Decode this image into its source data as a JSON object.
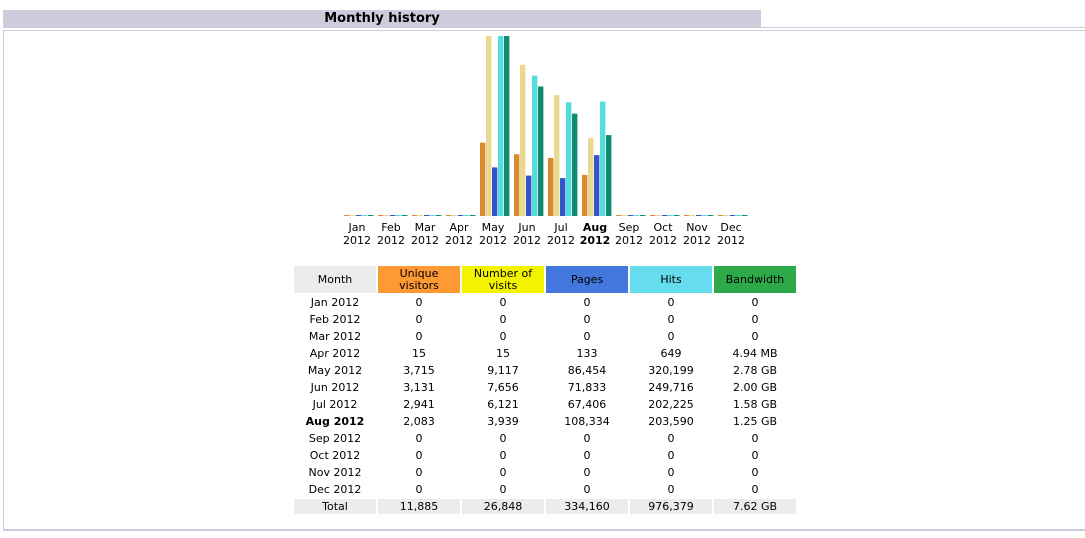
{
  "header": {
    "title": "Monthly history"
  },
  "colors": {
    "header_bg": "#ccccdd",
    "unique_visitors": "#ff9933",
    "number_of_visits": "#f3f300",
    "pages": "#4477dd",
    "hits": "#66ddee",
    "bandwidth": "#2ea94a",
    "bar_unique": "#d98b30",
    "bar_visits": "#e8d890",
    "bar_pages": "#3355cc",
    "bar_hits": "#55dddd",
    "bar_bandwidth": "#128a70",
    "row_shade": "#ececec"
  },
  "chart_data": {
    "type": "bar",
    "categories": [
      {
        "month": "Jan",
        "year": "2012"
      },
      {
        "month": "Feb",
        "year": "2012"
      },
      {
        "month": "Mar",
        "year": "2012"
      },
      {
        "month": "Apr",
        "year": "2012"
      },
      {
        "month": "May",
        "year": "2012"
      },
      {
        "month": "Jun",
        "year": "2012"
      },
      {
        "month": "Jul",
        "year": "2012"
      },
      {
        "month": "Aug",
        "year": "2012",
        "current": true
      },
      {
        "month": "Sep",
        "year": "2012"
      },
      {
        "month": "Oct",
        "year": "2012"
      },
      {
        "month": "Nov",
        "year": "2012"
      },
      {
        "month": "Dec",
        "year": "2012"
      }
    ],
    "series": [
      {
        "key": "unique",
        "values": [
          0,
          0,
          0,
          15,
          3715,
          3131,
          2941,
          2083,
          0,
          0,
          0,
          0
        ]
      },
      {
        "key": "visits",
        "values": [
          0,
          0,
          0,
          15,
          9117,
          7656,
          6121,
          3939,
          0,
          0,
          0,
          0
        ]
      },
      {
        "key": "pages",
        "values": [
          0,
          0,
          0,
          133,
          86454,
          71833,
          67406,
          108334,
          0,
          0,
          0,
          0
        ]
      },
      {
        "key": "hits",
        "values": [
          0,
          0,
          0,
          649,
          320199,
          249716,
          202225,
          203590,
          0,
          0,
          0,
          0
        ]
      },
      {
        "key": "bandwidth",
        "values": [
          0,
          0,
          0,
          0.00494,
          2.78,
          2.0,
          1.58,
          1.25,
          0,
          0,
          0,
          0
        ],
        "unit": "GB"
      }
    ]
  },
  "table": {
    "headers": {
      "month": "Month",
      "unique_line1": "Unique",
      "unique_line2": "visitors",
      "visits_line1": "Number of",
      "visits_line2": "visits",
      "pages": "Pages",
      "hits": "Hits",
      "bandwidth": "Bandwidth"
    },
    "rows": [
      {
        "month": "Jan 2012",
        "unique": "0",
        "visits": "0",
        "pages": "0",
        "hits": "0",
        "bandwidth": "0"
      },
      {
        "month": "Feb 2012",
        "unique": "0",
        "visits": "0",
        "pages": "0",
        "hits": "0",
        "bandwidth": "0"
      },
      {
        "month": "Mar 2012",
        "unique": "0",
        "visits": "0",
        "pages": "0",
        "hits": "0",
        "bandwidth": "0"
      },
      {
        "month": "Apr 2012",
        "unique": "15",
        "visits": "15",
        "pages": "133",
        "hits": "649",
        "bandwidth": "4.94 MB"
      },
      {
        "month": "May 2012",
        "unique": "3,715",
        "visits": "9,117",
        "pages": "86,454",
        "hits": "320,199",
        "bandwidth": "2.78 GB"
      },
      {
        "month": "Jun 2012",
        "unique": "3,131",
        "visits": "7,656",
        "pages": "71,833",
        "hits": "249,716",
        "bandwidth": "2.00 GB"
      },
      {
        "month": "Jul 2012",
        "unique": "2,941",
        "visits": "6,121",
        "pages": "67,406",
        "hits": "202,225",
        "bandwidth": "1.58 GB"
      },
      {
        "month": "Aug 2012",
        "unique": "2,083",
        "visits": "3,939",
        "pages": "108,334",
        "hits": "203,590",
        "bandwidth": "1.25 GB",
        "current": true
      },
      {
        "month": "Sep 2012",
        "unique": "0",
        "visits": "0",
        "pages": "0",
        "hits": "0",
        "bandwidth": "0"
      },
      {
        "month": "Oct 2012",
        "unique": "0",
        "visits": "0",
        "pages": "0",
        "hits": "0",
        "bandwidth": "0"
      },
      {
        "month": "Nov 2012",
        "unique": "0",
        "visits": "0",
        "pages": "0",
        "hits": "0",
        "bandwidth": "0"
      },
      {
        "month": "Dec 2012",
        "unique": "0",
        "visits": "0",
        "pages": "0",
        "hits": "0",
        "bandwidth": "0"
      }
    ],
    "total": {
      "month": "Total",
      "unique": "11,885",
      "visits": "26,848",
      "pages": "334,160",
      "hits": "976,379",
      "bandwidth": "7.62 GB"
    }
  }
}
